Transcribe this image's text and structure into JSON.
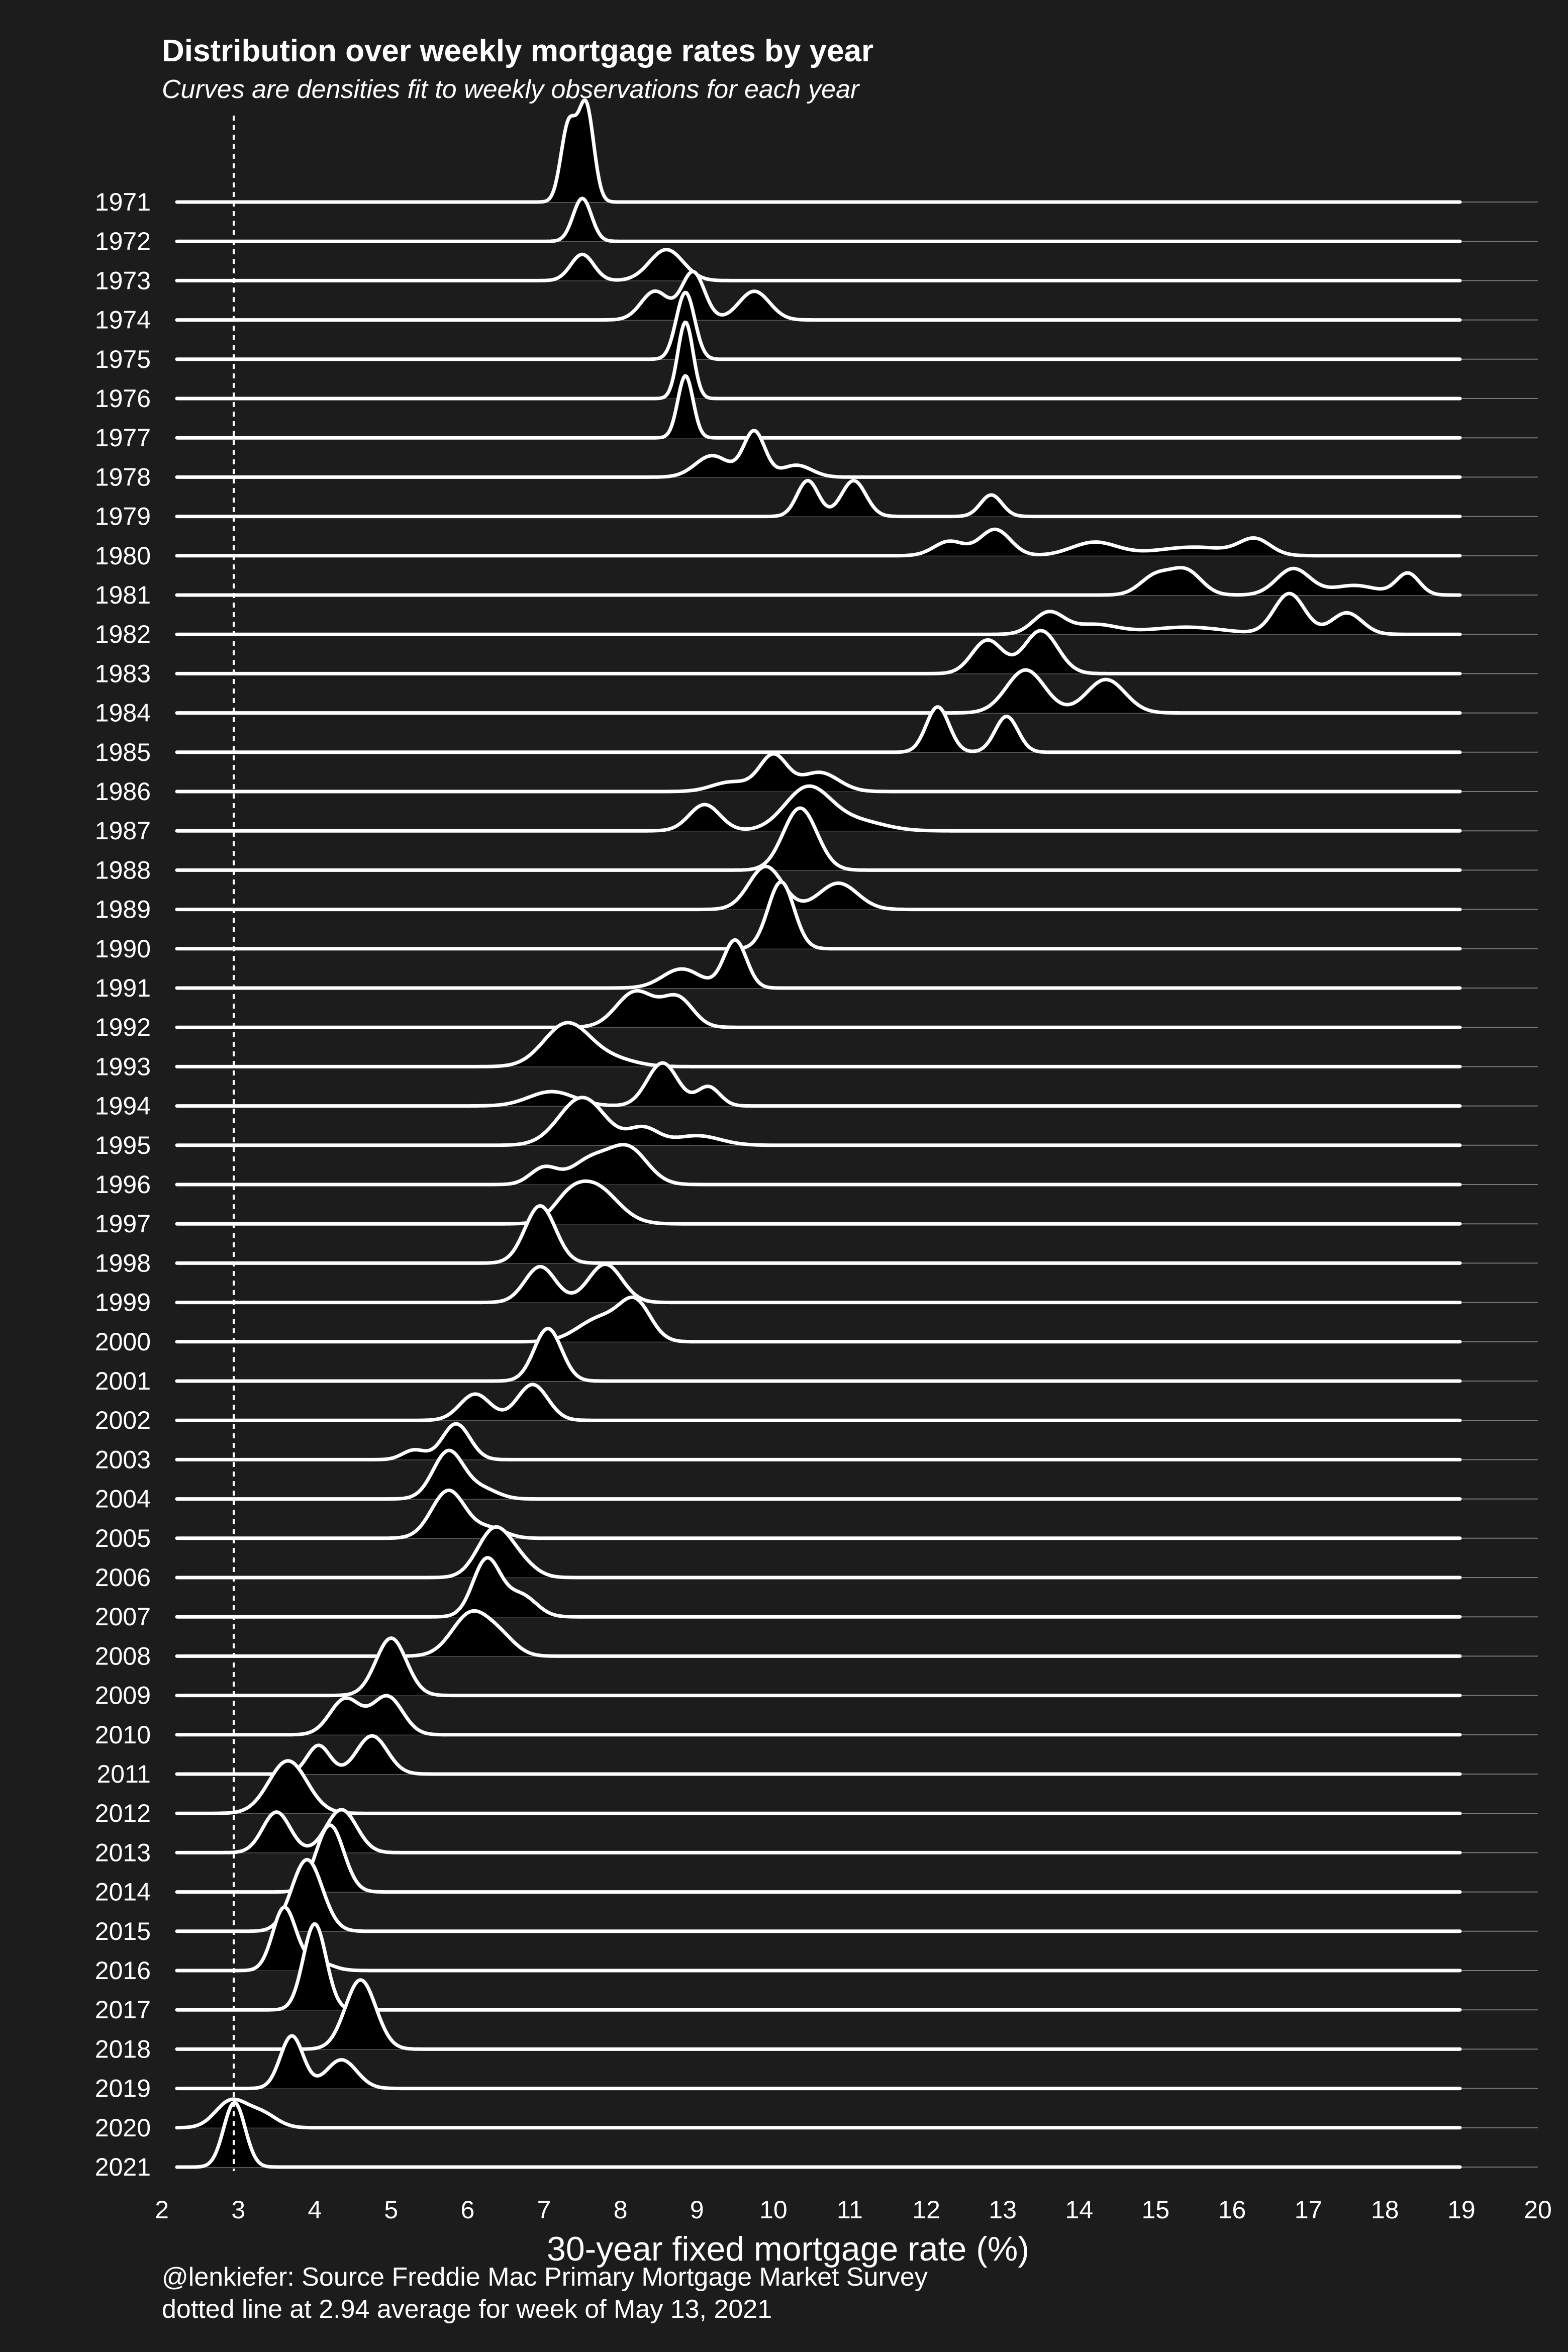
{
  "chart_data": {
    "type": "area",
    "chart_kind": "ridgeline density",
    "title": "Distribution over weekly mortgage rates by year",
    "subtitle": "Curves are densities fit to weekly observations for each year",
    "xlabel": "30-year fixed mortgage rate (%)",
    "ylabel": "",
    "xlim": [
      2,
      20
    ],
    "xticks": [
      "2",
      "3",
      "4",
      "5",
      "6",
      "7",
      "8",
      "9",
      "10",
      "11",
      "12",
      "13",
      "14",
      "15",
      "16",
      "17",
      "18",
      "19",
      "20"
    ],
    "reference_line": {
      "x": 2.94,
      "style": "dotted"
    },
    "caption_lines": [
      "@lenkiefer: Source Freddie Mac Primary Mortgage Market Survey",
      "dotted line at 2.94 average for week of May 13, 2021"
    ],
    "colors": {
      "background": "#1c1c1c",
      "fill": "#000000",
      "line": "#ffffff",
      "grid": "#777777"
    },
    "series": [
      {
        "year": "1971",
        "peaks": [
          [
            7.32,
            1.6,
            0.1
          ],
          [
            7.55,
            2.0,
            0.1
          ]
        ]
      },
      {
        "year": "1972",
        "peaks": [
          [
            7.5,
            0.9,
            0.12
          ]
        ]
      },
      {
        "year": "1973",
        "peaks": [
          [
            7.5,
            0.55,
            0.15
          ],
          [
            8.6,
            0.65,
            0.22
          ]
        ]
      },
      {
        "year": "1974",
        "peaks": [
          [
            8.45,
            0.6,
            0.18
          ],
          [
            8.95,
            1.0,
            0.15
          ],
          [
            9.75,
            0.6,
            0.2
          ]
        ]
      },
      {
        "year": "1975",
        "peaks": [
          [
            8.85,
            1.4,
            0.12
          ]
        ]
      },
      {
        "year": "1976",
        "peaks": [
          [
            8.85,
            1.6,
            0.1
          ]
        ]
      },
      {
        "year": "1977",
        "peaks": [
          [
            8.85,
            1.3,
            0.1
          ]
        ]
      },
      {
        "year": "1978",
        "peaks": [
          [
            9.2,
            0.45,
            0.22
          ],
          [
            9.75,
            0.95,
            0.14
          ],
          [
            10.3,
            0.25,
            0.2
          ]
        ]
      },
      {
        "year": "1979",
        "peaks": [
          [
            10.45,
            0.75,
            0.14
          ],
          [
            11.05,
            0.75,
            0.16
          ],
          [
            12.85,
            0.45,
            0.14
          ]
        ]
      },
      {
        "year": "1980",
        "peaks": [
          [
            12.3,
            0.3,
            0.2
          ],
          [
            12.9,
            0.55,
            0.2
          ],
          [
            14.2,
            0.28,
            0.3
          ],
          [
            15.5,
            0.18,
            0.5
          ],
          [
            16.3,
            0.32,
            0.2
          ]
        ]
      },
      {
        "year": "1981",
        "peaks": [
          [
            15.0,
            0.4,
            0.2
          ],
          [
            15.4,
            0.5,
            0.2
          ],
          [
            16.8,
            0.55,
            0.22
          ],
          [
            17.6,
            0.2,
            0.3
          ],
          [
            18.3,
            0.45,
            0.15
          ]
        ]
      },
      {
        "year": "1982",
        "peaks": [
          [
            13.6,
            0.45,
            0.2
          ],
          [
            14.2,
            0.2,
            0.3
          ],
          [
            15.4,
            0.15,
            0.5
          ],
          [
            16.75,
            0.85,
            0.2
          ],
          [
            17.5,
            0.45,
            0.2
          ]
        ]
      },
      {
        "year": "1983",
        "peaks": [
          [
            12.8,
            0.7,
            0.2
          ],
          [
            13.5,
            0.9,
            0.22
          ]
        ]
      },
      {
        "year": "1984",
        "peaks": [
          [
            13.3,
            0.9,
            0.25
          ],
          [
            14.35,
            0.7,
            0.25
          ]
        ]
      },
      {
        "year": "1985",
        "peaks": [
          [
            12.15,
            0.95,
            0.15
          ],
          [
            13.05,
            0.75,
            0.15
          ]
        ]
      },
      {
        "year": "1986",
        "peaks": [
          [
            9.45,
            0.2,
            0.25
          ],
          [
            10.0,
            0.75,
            0.18
          ],
          [
            10.6,
            0.4,
            0.25
          ]
        ]
      },
      {
        "year": "1987",
        "peaks": [
          [
            9.1,
            0.55,
            0.2
          ],
          [
            10.45,
            0.9,
            0.3
          ],
          [
            11.1,
            0.2,
            0.35
          ]
        ]
      },
      {
        "year": "1988",
        "peaks": [
          [
            10.35,
            1.3,
            0.22
          ]
        ]
      },
      {
        "year": "1989",
        "peaks": [
          [
            9.9,
            0.9,
            0.22
          ],
          [
            10.85,
            0.55,
            0.25
          ]
        ]
      },
      {
        "year": "1990",
        "peaks": [
          [
            10.1,
            1.4,
            0.17
          ]
        ]
      },
      {
        "year": "1991",
        "peaks": [
          [
            8.8,
            0.4,
            0.25
          ],
          [
            9.5,
            1.0,
            0.15
          ]
        ]
      },
      {
        "year": "1992",
        "peaks": [
          [
            8.2,
            0.75,
            0.25
          ],
          [
            8.75,
            0.6,
            0.2
          ]
        ]
      },
      {
        "year": "1993",
        "peaks": [
          [
            7.3,
            0.9,
            0.3
          ],
          [
            7.9,
            0.15,
            0.3
          ]
        ]
      },
      {
        "year": "1994",
        "peaks": [
          [
            7.1,
            0.3,
            0.3
          ],
          [
            8.55,
            0.9,
            0.2
          ],
          [
            9.15,
            0.4,
            0.15
          ]
        ]
      },
      {
        "year": "1995",
        "peaks": [
          [
            7.5,
            1.0,
            0.3
          ],
          [
            8.3,
            0.35,
            0.2
          ],
          [
            9.0,
            0.2,
            0.3
          ]
        ]
      },
      {
        "year": "1996",
        "peaks": [
          [
            7.0,
            0.35,
            0.18
          ],
          [
            7.6,
            0.5,
            0.25
          ],
          [
            8.1,
            0.75,
            0.25
          ]
        ]
      },
      {
        "year": "1997",
        "peaks": [
          [
            7.3,
            0.3,
            0.2
          ],
          [
            7.65,
            0.8,
            0.3
          ]
        ]
      },
      {
        "year": "1998",
        "peaks": [
          [
            6.95,
            1.2,
            0.2
          ]
        ]
      },
      {
        "year": "1999",
        "peaks": [
          [
            6.95,
            0.75,
            0.2
          ],
          [
            7.8,
            0.8,
            0.22
          ]
        ]
      },
      {
        "year": "2000",
        "peaks": [
          [
            7.75,
            0.5,
            0.3
          ],
          [
            8.2,
            0.75,
            0.2
          ]
        ]
      },
      {
        "year": "2001",
        "peaks": [
          [
            7.05,
            1.1,
            0.18
          ]
        ]
      },
      {
        "year": "2002",
        "peaks": [
          [
            6.1,
            0.55,
            0.2
          ],
          [
            6.85,
            0.75,
            0.2
          ]
        ]
      },
      {
        "year": "2003",
        "peaks": [
          [
            5.3,
            0.2,
            0.15
          ],
          [
            5.85,
            0.75,
            0.18
          ]
        ]
      },
      {
        "year": "2004",
        "peaks": [
          [
            5.75,
            1.0,
            0.2
          ],
          [
            6.2,
            0.2,
            0.2
          ]
        ]
      },
      {
        "year": "2005",
        "peaks": [
          [
            5.75,
            1.0,
            0.22
          ],
          [
            6.3,
            0.2,
            0.2
          ]
        ]
      },
      {
        "year": "2006",
        "peaks": [
          [
            6.35,
            1.0,
            0.22
          ],
          [
            6.7,
            0.25,
            0.2
          ]
        ]
      },
      {
        "year": "2007",
        "peaks": [
          [
            6.25,
            1.2,
            0.18
          ],
          [
            6.7,
            0.45,
            0.2
          ]
        ]
      },
      {
        "year": "2008",
        "peaks": [
          [
            6.05,
            0.9,
            0.25
          ],
          [
            6.45,
            0.3,
            0.2
          ]
        ]
      },
      {
        "year": "2009",
        "peaks": [
          [
            5.0,
            1.2,
            0.2
          ]
        ]
      },
      {
        "year": "2010",
        "peaks": [
          [
            4.4,
            0.75,
            0.2
          ],
          [
            4.95,
            0.8,
            0.2
          ]
        ]
      },
      {
        "year": "2011",
        "peaks": [
          [
            4.05,
            0.6,
            0.15
          ],
          [
            4.75,
            0.8,
            0.2
          ]
        ]
      },
      {
        "year": "2012",
        "peaks": [
          [
            3.65,
            1.1,
            0.25
          ]
        ]
      },
      {
        "year": "2013",
        "peaks": [
          [
            3.5,
            0.85,
            0.18
          ],
          [
            4.35,
            0.9,
            0.2
          ]
        ]
      },
      {
        "year": "2014",
        "peaks": [
          [
            4.2,
            1.4,
            0.18
          ]
        ]
      },
      {
        "year": "2015",
        "peaks": [
          [
            3.9,
            1.5,
            0.2
          ]
        ]
      },
      {
        "year": "2016",
        "peaks": [
          [
            3.6,
            1.3,
            0.15
          ],
          [
            4.0,
            0.2,
            0.2
          ]
        ]
      },
      {
        "year": "2017",
        "peaks": [
          [
            4.0,
            1.8,
            0.15
          ]
        ]
      },
      {
        "year": "2018",
        "peaks": [
          [
            4.6,
            1.45,
            0.2
          ]
        ]
      },
      {
        "year": "2019",
        "peaks": [
          [
            3.7,
            1.1,
            0.15
          ],
          [
            4.35,
            0.6,
            0.2
          ]
        ]
      },
      {
        "year": "2020",
        "peaks": [
          [
            2.9,
            0.55,
            0.2
          ],
          [
            3.3,
            0.3,
            0.2
          ]
        ]
      },
      {
        "year": "2021",
        "peaks": [
          [
            2.95,
            1.35,
            0.14
          ]
        ]
      }
    ]
  }
}
